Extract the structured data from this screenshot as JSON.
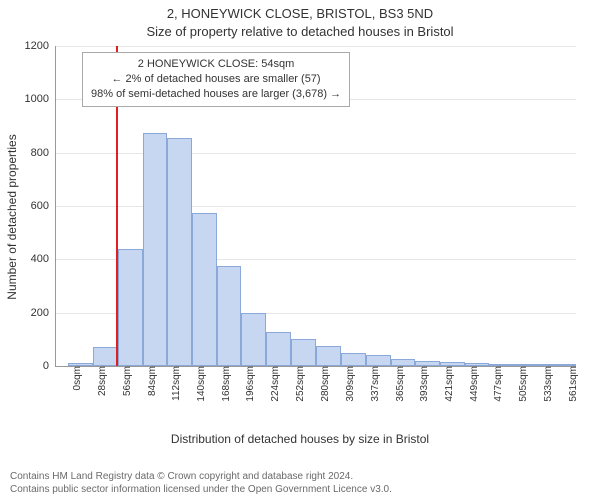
{
  "chart": {
    "type": "histogram",
    "title": "2, HONEYWICK CLOSE, BRISTOL, BS3 5ND",
    "subtitle": "Size of property relative to detached houses in Bristol",
    "xlabel": "Distribution of detached houses by size in Bristol",
    "ylabel": "Number of detached properties",
    "background_color": "#ffffff",
    "grid_color": "#e6e6e6",
    "axis_color": "#999999",
    "bar_fill": "#c7d7f2",
    "bar_border": "#8aa8d8",
    "ref_line_color": "#e02020",
    "ref_line_x_value": 54,
    "title_fontsize": 13,
    "subtitle_fontsize": 13,
    "label_fontsize": 12,
    "tick_fontsize": 11,
    "xtick_fontsize": 10,
    "ylim": [
      0,
      1200
    ],
    "yticks": [
      0,
      200,
      400,
      600,
      800,
      1000,
      1200
    ],
    "xlim": [
      -14,
      575
    ],
    "xticks": [
      {
        "pos": 0,
        "label": "0sqm"
      },
      {
        "pos": 28,
        "label": "28sqm"
      },
      {
        "pos": 56,
        "label": "56sqm"
      },
      {
        "pos": 84,
        "label": "84sqm"
      },
      {
        "pos": 112,
        "label": "112sqm"
      },
      {
        "pos": 140,
        "label": "140sqm"
      },
      {
        "pos": 168,
        "label": "168sqm"
      },
      {
        "pos": 196,
        "label": "196sqm"
      },
      {
        "pos": 224,
        "label": "224sqm"
      },
      {
        "pos": 252,
        "label": "252sqm"
      },
      {
        "pos": 280,
        "label": "280sqm"
      },
      {
        "pos": 309,
        "label": "309sqm"
      },
      {
        "pos": 337,
        "label": "337sqm"
      },
      {
        "pos": 365,
        "label": "365sqm"
      },
      {
        "pos": 393,
        "label": "393sqm"
      },
      {
        "pos": 421,
        "label": "421sqm"
      },
      {
        "pos": 449,
        "label": "449sqm"
      },
      {
        "pos": 477,
        "label": "477sqm"
      },
      {
        "pos": 505,
        "label": "505sqm"
      },
      {
        "pos": 533,
        "label": "533sqm"
      },
      {
        "pos": 561,
        "label": "561sqm"
      }
    ],
    "bars": [
      {
        "x": 0,
        "w": 28,
        "y": 10
      },
      {
        "x": 28,
        "w": 28,
        "y": 70
      },
      {
        "x": 56,
        "w": 28,
        "y": 440
      },
      {
        "x": 84,
        "w": 28,
        "y": 875
      },
      {
        "x": 112,
        "w": 28,
        "y": 855
      },
      {
        "x": 140,
        "w": 28,
        "y": 575
      },
      {
        "x": 168,
        "w": 28,
        "y": 375
      },
      {
        "x": 196,
        "w": 28,
        "y": 200
      },
      {
        "x": 224,
        "w": 28,
        "y": 128
      },
      {
        "x": 252,
        "w": 28,
        "y": 100
      },
      {
        "x": 280,
        "w": 29,
        "y": 75
      },
      {
        "x": 309,
        "w": 28,
        "y": 50
      },
      {
        "x": 337,
        "w": 28,
        "y": 40
      },
      {
        "x": 365,
        "w": 28,
        "y": 28
      },
      {
        "x": 393,
        "w": 28,
        "y": 20
      },
      {
        "x": 421,
        "w": 28,
        "y": 14
      },
      {
        "x": 449,
        "w": 28,
        "y": 10
      },
      {
        "x": 477,
        "w": 28,
        "y": 3
      },
      {
        "x": 505,
        "w": 28,
        "y": 5
      },
      {
        "x": 533,
        "w": 28,
        "y": 4
      },
      {
        "x": 561,
        "w": 14,
        "y": 4
      }
    ],
    "info_box": {
      "line1": "2 HONEYWICK CLOSE: 54sqm",
      "line2": "← 2% of detached houses are smaller (57)",
      "line3": "98% of semi-detached houses are larger (3,678) →"
    }
  },
  "footer": {
    "line1": "Contains HM Land Registry data © Crown copyright and database right 2024.",
    "line2": "Contains public sector information licensed under the Open Government Licence v3.0."
  }
}
